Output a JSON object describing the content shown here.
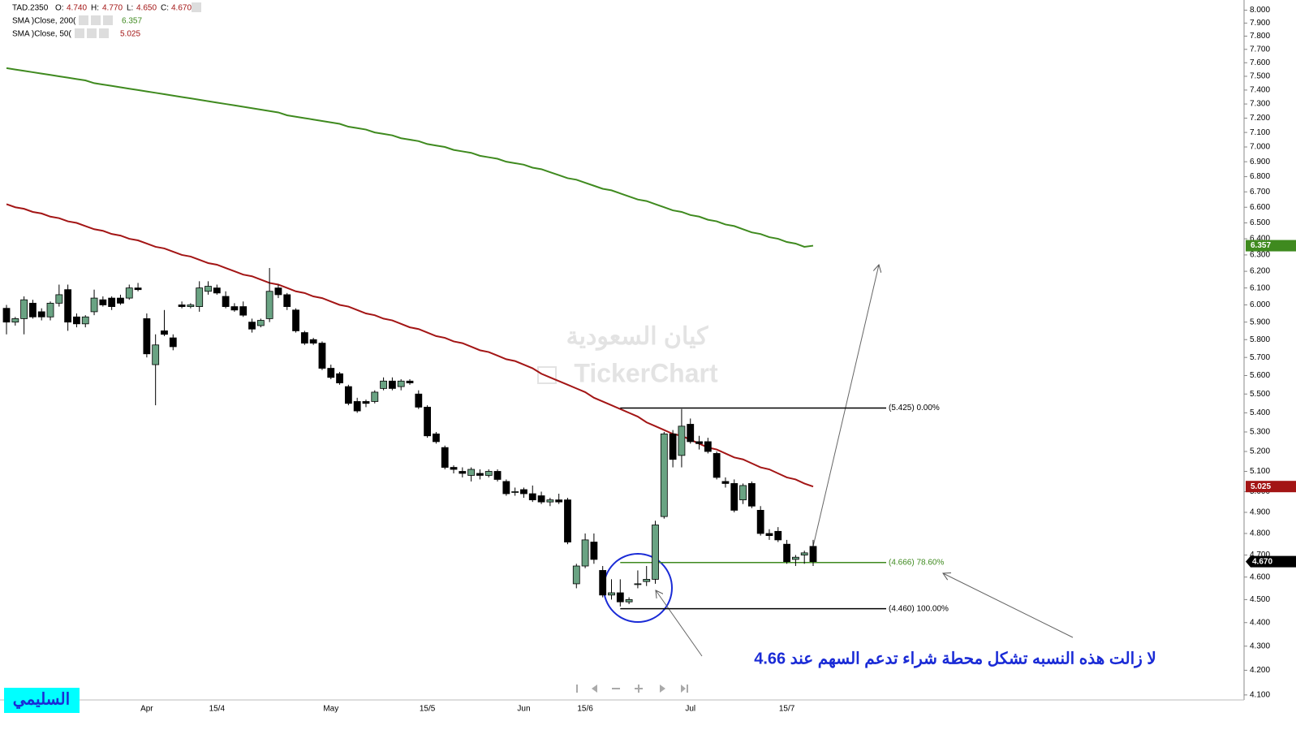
{
  "chart_data": {
    "type": "candlestick",
    "log_scale": true,
    "grid": false,
    "up_color": "#6aa383",
    "down_color": "#000000",
    "categories": [
      null,
      null,
      null,
      null,
      null,
      null,
      null,
      null,
      null,
      null,
      null,
      null,
      null,
      null,
      null,
      null,
      "Apr",
      null,
      null,
      null,
      null,
      null,
      null,
      null,
      "15/4",
      null,
      null,
      null,
      null,
      null,
      null,
      null,
      null,
      null,
      null,
      null,
      null,
      "May",
      null,
      null,
      null,
      null,
      null,
      null,
      null,
      null,
      null,
      null,
      "15/5",
      null,
      null,
      null,
      null,
      null,
      null,
      null,
      null,
      null,
      null,
      "Jun",
      null,
      null,
      null,
      null,
      null,
      null,
      "15/6",
      null,
      null,
      null,
      null,
      null,
      null,
      null,
      null,
      null,
      null,
      null,
      "Jul",
      null,
      null,
      null,
      null,
      null,
      null,
      null,
      null,
      null,
      null,
      "15/7",
      null,
      null,
      null
    ],
    "open": [
      5.98,
      5.9,
      5.92,
      6.01,
      5.96,
      5.93,
      6.01,
      6.09,
      5.93,
      5.89,
      5.96,
      6.03,
      6.04,
      6.04,
      6.04,
      6.1,
      5.92,
      5.66,
      5.85,
      5.81,
      6.0,
      5.99,
      5.99,
      6.08,
      6.1,
      6.05,
      5.99,
      5.99,
      5.9,
      5.88,
      5.92,
      6.1,
      6.06,
      5.97,
      5.84,
      5.8,
      5.78,
      5.64,
      5.61,
      5.54,
      5.46,
      5.46,
      5.46,
      5.53,
      5.57,
      5.54,
      5.57,
      5.5,
      5.43,
      5.29,
      5.22,
      5.12,
      5.1,
      5.08,
      5.09,
      5.08,
      5.1,
      5.05,
      5.0,
      5.01,
      4.99,
      4.98,
      4.95,
      4.96,
      4.96,
      4.57,
      4.65,
      4.76,
      4.63,
      4.52,
      4.53,
      4.49,
      4.57,
      4.58,
      4.59,
      4.88,
      5.29,
      5.18,
      5.34,
      5.25,
      5.25,
      5.19,
      5.05,
      5.04,
      4.96,
      5.04,
      4.91,
      4.8,
      4.81,
      4.75,
      4.68,
      4.7,
      4.74
    ],
    "high": [
      6.0,
      5.93,
      6.05,
      6.03,
      5.98,
      6.02,
      6.12,
      6.12,
      5.95,
      5.94,
      6.09,
      6.05,
      6.05,
      6.06,
      6.12,
      6.13,
      5.95,
      5.83,
      5.97,
      5.83,
      6.02,
      6.01,
      6.14,
      6.14,
      6.12,
      6.08,
      6.01,
      6.02,
      5.92,
      5.92,
      6.22,
      6.12,
      6.07,
      5.98,
      5.85,
      5.81,
      5.79,
      5.66,
      5.62,
      5.55,
      5.48,
      5.47,
      5.52,
      5.59,
      5.59,
      5.58,
      5.58,
      5.52,
      5.44,
      5.3,
      5.23,
      5.13,
      5.12,
      5.12,
      5.11,
      5.11,
      5.11,
      5.06,
      5.02,
      5.02,
      5.03,
      5.0,
      4.97,
      4.99,
      4.97,
      4.66,
      4.8,
      4.8,
      4.65,
      4.59,
      4.59,
      4.51,
      4.63,
      4.65,
      4.86,
      5.3,
      5.31,
      5.42,
      5.37,
      5.28,
      5.27,
      5.2,
      5.07,
      5.06,
      5.04,
      5.05,
      4.93,
      4.82,
      4.83,
      4.77,
      4.7,
      4.72,
      4.77
    ],
    "low": [
      5.83,
      5.88,
      5.83,
      5.92,
      5.91,
      5.91,
      5.99,
      5.85,
      5.87,
      5.87,
      5.94,
      5.99,
      5.97,
      6.0,
      6.03,
      6.08,
      5.7,
      5.44,
      5.82,
      5.74,
      5.98,
      5.98,
      5.96,
      6.06,
      6.06,
      5.98,
      5.96,
      5.93,
      5.84,
      5.87,
      5.9,
      6.04,
      5.97,
      5.84,
      5.77,
      5.77,
      5.63,
      5.58,
      5.55,
      5.44,
      5.4,
      5.43,
      5.45,
      5.52,
      5.52,
      5.52,
      5.55,
      5.42,
      5.27,
      5.24,
      5.11,
      5.09,
      5.07,
      5.05,
      5.06,
      5.07,
      5.05,
      4.98,
      4.98,
      4.97,
      4.95,
      4.94,
      4.93,
      4.94,
      4.75,
      4.55,
      4.64,
      4.66,
      4.51,
      4.5,
      4.47,
      4.48,
      4.55,
      4.56,
      4.57,
      4.87,
      5.12,
      5.12,
      5.24,
      5.21,
      5.19,
      5.06,
      5.02,
      4.9,
      4.94,
      4.92,
      4.79,
      4.77,
      4.76,
      4.66,
      4.65,
      4.66,
      4.65
    ],
    "close": [
      5.9,
      5.92,
      6.03,
      5.93,
      5.93,
      6.01,
      6.06,
      5.9,
      5.89,
      5.93,
      6.04,
      6.0,
      5.99,
      6.01,
      6.1,
      6.09,
      5.72,
      5.77,
      5.83,
      5.76,
      5.99,
      6.0,
      6.1,
      6.11,
      6.07,
      5.99,
      5.97,
      5.94,
      5.86,
      5.91,
      6.08,
      6.06,
      5.99,
      5.85,
      5.78,
      5.78,
      5.64,
      5.59,
      5.56,
      5.45,
      5.41,
      5.45,
      5.51,
      5.57,
      5.53,
      5.57,
      5.56,
      5.43,
      5.28,
      5.25,
      5.12,
      5.11,
      5.09,
      5.11,
      5.08,
      5.1,
      5.06,
      4.99,
      5.0,
      4.99,
      4.96,
      4.95,
      4.96,
      4.95,
      4.76,
      4.65,
      4.77,
      4.68,
      4.52,
      4.53,
      4.49,
      4.5,
      4.57,
      4.59,
      4.84,
      5.29,
      5.16,
      5.33,
      5.25,
      5.24,
      5.2,
      5.07,
      5.04,
      4.91,
      5.03,
      4.93,
      4.8,
      4.79,
      4.77,
      4.67,
      4.69,
      4.71,
      4.67
    ],
    "series": [
      {
        "name": "SMA )Close, 200(",
        "color": "#3f8a1f",
        "values": [
          7.56,
          7.55,
          7.54,
          7.53,
          7.52,
          7.51,
          7.5,
          7.49,
          7.48,
          7.47,
          7.45,
          7.44,
          7.43,
          7.42,
          7.41,
          7.4,
          7.39,
          7.38,
          7.37,
          7.36,
          7.35,
          7.34,
          7.33,
          7.32,
          7.31,
          7.3,
          7.29,
          7.28,
          7.27,
          7.26,
          7.25,
          7.24,
          7.22,
          7.21,
          7.2,
          7.19,
          7.18,
          7.17,
          7.16,
          7.14,
          7.13,
          7.12,
          7.1,
          7.09,
          7.08,
          7.06,
          7.05,
          7.04,
          7.02,
          7.01,
          7.0,
          6.98,
          6.97,
          6.96,
          6.94,
          6.93,
          6.92,
          6.9,
          6.89,
          6.88,
          6.86,
          6.85,
          6.83,
          6.81,
          6.79,
          6.78,
          6.76,
          6.74,
          6.72,
          6.71,
          6.69,
          6.67,
          6.65,
          6.64,
          6.62,
          6.6,
          6.58,
          6.57,
          6.55,
          6.54,
          6.52,
          6.51,
          6.49,
          6.48,
          6.46,
          6.44,
          6.43,
          6.41,
          6.4,
          6.38,
          6.37,
          6.35,
          6.357
        ]
      },
      {
        "name": "SMA )Close, 50(",
        "color": "#a31515",
        "values": [
          6.62,
          6.6,
          6.59,
          6.57,
          6.56,
          6.54,
          6.53,
          6.51,
          6.5,
          6.48,
          6.46,
          6.45,
          6.43,
          6.42,
          6.4,
          6.39,
          6.37,
          6.35,
          6.34,
          6.32,
          6.3,
          6.29,
          6.27,
          6.25,
          6.24,
          6.22,
          6.2,
          6.18,
          6.17,
          6.15,
          6.13,
          6.12,
          6.1,
          6.08,
          6.07,
          6.05,
          6.04,
          6.02,
          6.0,
          5.99,
          5.97,
          5.95,
          5.94,
          5.92,
          5.91,
          5.89,
          5.87,
          5.86,
          5.84,
          5.82,
          5.81,
          5.79,
          5.78,
          5.76,
          5.74,
          5.73,
          5.71,
          5.69,
          5.68,
          5.66,
          5.64,
          5.61,
          5.59,
          5.57,
          5.55,
          5.53,
          5.51,
          5.48,
          5.46,
          5.44,
          5.42,
          5.4,
          5.38,
          5.35,
          5.33,
          5.31,
          5.29,
          5.28,
          5.26,
          5.24,
          5.22,
          5.21,
          5.19,
          5.17,
          5.16,
          5.14,
          5.12,
          5.11,
          5.09,
          5.07,
          5.06,
          5.04,
          5.025
        ]
      }
    ],
    "ylim": [
      4.08,
      8.08
    ],
    "yticks": [
      {
        "value": 4.1,
        "label": "4.100"
      },
      {
        "value": 4.2,
        "label": "4.200"
      },
      {
        "value": 4.3,
        "label": "4.300"
      },
      {
        "value": 4.4,
        "label": "4.400"
      },
      {
        "value": 4.5,
        "label": "4.500"
      },
      {
        "value": 4.6,
        "label": "4.600"
      },
      {
        "value": 4.7,
        "label": "4.700"
      },
      {
        "value": 4.8,
        "label": "4.800"
      },
      {
        "value": 4.9,
        "label": "4.900"
      },
      {
        "value": 5.0,
        "label": "5.000"
      },
      {
        "value": 5.1,
        "label": "5.100"
      },
      {
        "value": 5.2,
        "label": "5.200"
      },
      {
        "value": 5.3,
        "label": "5.300"
      },
      {
        "value": 5.4,
        "label": "5.400"
      },
      {
        "value": 5.5,
        "label": "5.500"
      },
      {
        "value": 5.6,
        "label": "5.600"
      },
      {
        "value": 5.7,
        "label": "5.700"
      },
      {
        "value": 5.8,
        "label": "5.800"
      },
      {
        "value": 5.9,
        "label": "5.900"
      },
      {
        "value": 6.0,
        "label": "6.000"
      },
      {
        "value": 6.1,
        "label": "6.100"
      },
      {
        "value": 6.2,
        "label": "6.200"
      },
      {
        "value": 6.3,
        "label": "6.300"
      },
      {
        "value": 6.4,
        "label": "6.400"
      },
      {
        "value": 6.5,
        "label": "6.500"
      },
      {
        "value": 6.6,
        "label": "6.600"
      },
      {
        "value": 6.7,
        "label": "6.700"
      },
      {
        "value": 6.8,
        "label": "6.800"
      },
      {
        "value": 6.9,
        "label": "6.900"
      },
      {
        "value": 7.0,
        "label": "7.000"
      },
      {
        "value": 7.1,
        "label": "7.100"
      },
      {
        "value": 7.2,
        "label": "7.200"
      },
      {
        "value": 7.3,
        "label": "7.300"
      },
      {
        "value": 7.4,
        "label": "7.400"
      },
      {
        "value": 7.5,
        "label": "7.500"
      },
      {
        "value": 7.6,
        "label": "7.600"
      },
      {
        "value": 7.7,
        "label": "7.700"
      },
      {
        "value": 7.8,
        "label": "7.800"
      },
      {
        "value": 7.9,
        "label": "7.900"
      },
      {
        "value": 8.0,
        "label": "8.000"
      }
    ],
    "fib_levels": [
      {
        "price": 5.425,
        "label": "(5.425) 0.00%",
        "color": "#000000"
      },
      {
        "price": 4.666,
        "label": "(4.666) 78.60%",
        "color": "#3f8a1f"
      },
      {
        "price": 4.46,
        "label": "(4.460) 100.00%",
        "color": "#000000"
      }
    ],
    "legend_header": {
      "symbol": "TAD.2350",
      "items": [
        {
          "label": "O:",
          "value": "4.740"
        },
        {
          "label": "H:",
          "value": "4.770"
        },
        {
          "label": "L:",
          "value": "4.650"
        },
        {
          "label": "C:",
          "value": "4.670"
        }
      ]
    },
    "annotation": "لا زالت هذه النسبه تشكل محطة شراء تدعم السهم عند 4.66",
    "watermark": [
      "كيان السعودية",
      "TickerChart"
    ],
    "badge": "السليمي"
  }
}
